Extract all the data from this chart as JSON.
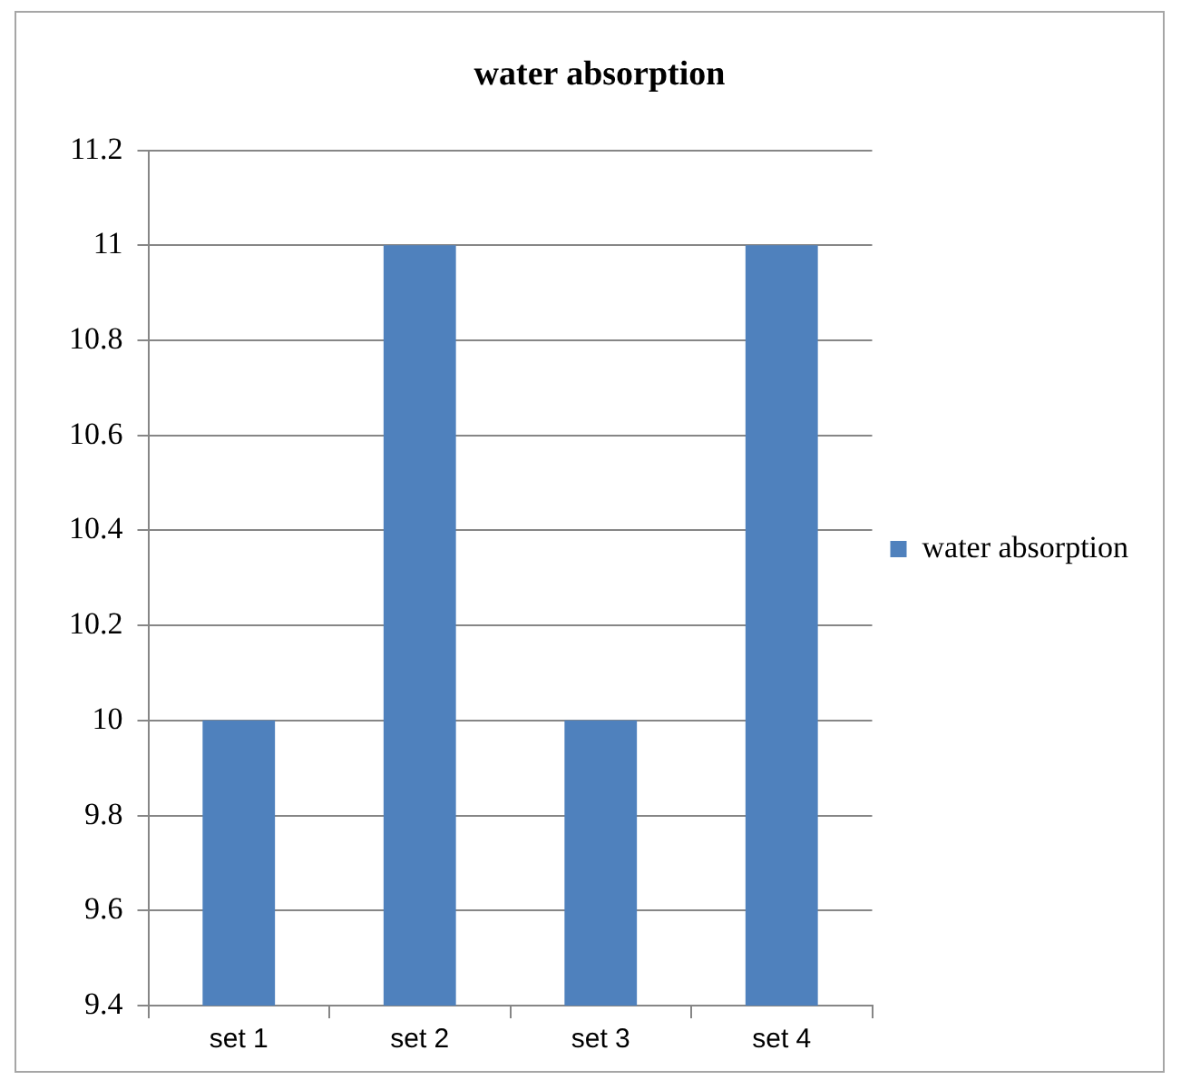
{
  "chart_data": {
    "type": "bar",
    "title": "water absorption",
    "categories": [
      "set 1",
      "set 2",
      "set 3",
      "set 4"
    ],
    "series": [
      {
        "name": "water absorption",
        "color": "#4f81bd",
        "values": [
          10,
          11,
          10,
          11
        ]
      }
    ],
    "ylim": [
      9.4,
      11.2
    ],
    "yticks": [
      9.4,
      9.6,
      9.8,
      10,
      10.2,
      10.4,
      10.6,
      10.8,
      11,
      11.2
    ],
    "grid": "y",
    "legend": "right"
  }
}
